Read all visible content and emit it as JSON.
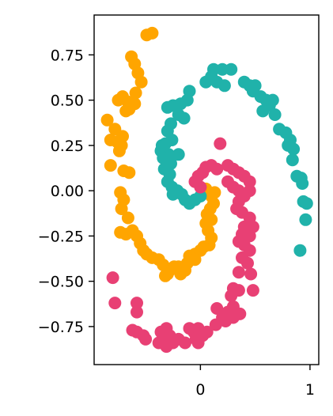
{
  "chart_data": {
    "type": "scatter",
    "title": "",
    "xlabel": "",
    "ylabel": "",
    "xlim": [
      -0.97,
      1.08
    ],
    "ylim": [
      -0.96,
      0.97
    ],
    "grid": false,
    "legend": "none",
    "xticks": [
      {
        "value": 0,
        "label": "0"
      },
      {
        "value": 1,
        "label": "1"
      }
    ],
    "yticks": [
      {
        "value": 0.75,
        "label": "0.75"
      },
      {
        "value": 0.5,
        "label": "0.50"
      },
      {
        "value": 0.25,
        "label": "0.25"
      },
      {
        "value": 0.0,
        "label": "0.00"
      },
      {
        "value": -0.25,
        "label": "−0.25"
      },
      {
        "value": -0.5,
        "label": "−0.50"
      },
      {
        "value": -0.75,
        "label": "−0.75"
      }
    ],
    "series": [
      {
        "color": "#FFA500",
        "points": [
          [
            -0.49,
            0.86
          ],
          [
            -0.44,
            0.87
          ],
          [
            -0.63,
            0.74
          ],
          [
            -0.6,
            0.7
          ],
          [
            -0.57,
            0.65
          ],
          [
            -0.54,
            0.6
          ],
          [
            -0.59,
            0.54
          ],
          [
            -0.71,
            0.52
          ],
          [
            -0.66,
            0.49
          ],
          [
            -0.6,
            0.48
          ],
          [
            -0.68,
            0.44
          ],
          [
            -0.75,
            0.5
          ],
          [
            -0.65,
            0.45
          ],
          [
            -0.85,
            0.39
          ],
          [
            -0.78,
            0.34
          ],
          [
            -0.71,
            0.3
          ],
          [
            -0.82,
            0.28
          ],
          [
            -0.76,
            0.27
          ],
          [
            -0.72,
            0.25
          ],
          [
            -0.74,
            0.22
          ],
          [
            -0.82,
            0.14
          ],
          [
            -0.7,
            0.11
          ],
          [
            -0.65,
            0.1
          ],
          [
            -0.73,
            -0.01
          ],
          [
            -0.7,
            -0.05
          ],
          [
            -0.72,
            -0.1
          ],
          [
            -0.66,
            -0.15
          ],
          [
            -0.73,
            -0.23
          ],
          [
            -0.68,
            -0.24
          ],
          [
            -0.62,
            -0.22
          ],
          [
            -0.58,
            -0.25
          ],
          [
            -0.55,
            -0.29
          ],
          [
            -0.52,
            -0.33
          ],
          [
            -0.49,
            -0.35
          ],
          [
            -0.44,
            -0.37
          ],
          [
            -0.38,
            -0.38
          ],
          [
            -0.34,
            -0.41
          ],
          [
            -0.32,
            -0.47
          ],
          [
            -0.28,
            -0.44
          ],
          [
            -0.24,
            -0.42
          ],
          [
            -0.2,
            -0.42
          ],
          [
            -0.14,
            -0.44
          ],
          [
            -0.12,
            -0.4
          ],
          [
            -0.1,
            -0.36
          ],
          [
            -0.05,
            -0.35
          ],
          [
            0.0,
            -0.33
          ],
          [
            0.03,
            -0.31
          ],
          [
            0.08,
            -0.3
          ],
          [
            0.1,
            -0.26
          ],
          [
            0.07,
            -0.22
          ],
          [
            0.05,
            -0.18
          ],
          [
            0.1,
            -0.16
          ],
          [
            0.06,
            -0.13
          ],
          [
            0.09,
            -0.1
          ],
          [
            0.12,
            -0.07
          ],
          [
            0.1,
            -0.03
          ],
          [
            0.13,
            -0.01
          ],
          [
            0.05,
            0.01
          ],
          [
            -0.05,
            -0.38
          ],
          [
            -0.3,
            -0.46
          ],
          [
            -0.18,
            -0.46
          ]
        ]
      },
      {
        "color": "#20B2AA",
        "points": [
          [
            0.12,
            0.67
          ],
          [
            0.2,
            0.67
          ],
          [
            0.28,
            0.67
          ],
          [
            0.1,
            0.63
          ],
          [
            0.05,
            0.6
          ],
          [
            0.15,
            0.6
          ],
          [
            0.22,
            0.58
          ],
          [
            -0.1,
            0.55
          ],
          [
            -0.12,
            0.5
          ],
          [
            -0.18,
            0.48
          ],
          [
            -0.25,
            0.47
          ],
          [
            -0.3,
            0.46
          ],
          [
            -0.2,
            0.42
          ],
          [
            -0.15,
            0.4
          ],
          [
            -0.27,
            0.37
          ],
          [
            -0.3,
            0.33
          ],
          [
            -0.26,
            0.28
          ],
          [
            -0.32,
            0.26
          ],
          [
            -0.36,
            0.22
          ],
          [
            -0.29,
            0.2
          ],
          [
            -0.34,
            0.18
          ],
          [
            -0.27,
            0.15
          ],
          [
            -0.33,
            0.12
          ],
          [
            -0.28,
            0.09
          ],
          [
            -0.3,
            0.05
          ],
          [
            -0.26,
            0.02
          ],
          [
            -0.21,
            0.0
          ],
          [
            -0.25,
            -0.02
          ],
          [
            -0.17,
            -0.02
          ],
          [
            -0.14,
            -0.05
          ],
          [
            -0.1,
            -0.07
          ],
          [
            -0.05,
            -0.05
          ],
          [
            0.0,
            -0.03
          ],
          [
            0.4,
            0.6
          ],
          [
            0.45,
            0.58
          ],
          [
            0.5,
            0.58
          ],
          [
            0.48,
            0.55
          ],
          [
            0.55,
            0.52
          ],
          [
            0.6,
            0.5
          ],
          [
            0.66,
            0.5
          ],
          [
            0.63,
            0.47
          ],
          [
            0.57,
            0.44
          ],
          [
            0.68,
            0.42
          ],
          [
            0.72,
            0.34
          ],
          [
            0.78,
            0.32
          ],
          [
            0.82,
            0.28
          ],
          [
            0.8,
            0.25
          ],
          [
            0.85,
            0.23
          ],
          [
            0.84,
            0.17
          ],
          [
            0.88,
            0.08
          ],
          [
            0.92,
            0.07
          ],
          [
            0.93,
            0.04
          ],
          [
            0.94,
            -0.06
          ],
          [
            0.97,
            -0.07
          ],
          [
            0.96,
            -0.16
          ],
          [
            0.91,
            -0.33
          ],
          [
            -0.2,
            0.2
          ],
          [
            -0.35,
            0.25
          ]
        ]
      },
      {
        "color": "#E84074",
        "points": [
          [
            0.18,
            0.26
          ],
          [
            0.1,
            0.14
          ],
          [
            0.05,
            0.13
          ],
          [
            0.02,
            0.1
          ],
          [
            0.15,
            0.12
          ],
          [
            0.25,
            0.14
          ],
          [
            0.3,
            0.12
          ],
          [
            0.35,
            0.1
          ],
          [
            0.4,
            0.08
          ],
          [
            0.45,
            0.05
          ],
          [
            -0.02,
            0.08
          ],
          [
            -0.05,
            0.05
          ],
          [
            0.0,
            0.02
          ],
          [
            0.25,
            0.05
          ],
          [
            0.3,
            0.02
          ],
          [
            0.35,
            0.0
          ],
          [
            0.45,
            0.0
          ],
          [
            0.4,
            -0.03
          ],
          [
            0.35,
            -0.06
          ],
          [
            0.33,
            -0.1
          ],
          [
            0.38,
            -0.12
          ],
          [
            0.45,
            -0.15
          ],
          [
            0.4,
            -0.2
          ],
          [
            0.48,
            -0.2
          ],
          [
            0.45,
            -0.25
          ],
          [
            0.38,
            -0.24
          ],
          [
            0.35,
            -0.28
          ],
          [
            0.4,
            -0.3
          ],
          [
            0.45,
            -0.33
          ],
          [
            0.38,
            -0.37
          ],
          [
            0.43,
            -0.4
          ],
          [
            0.35,
            -0.45
          ],
          [
            0.46,
            -0.46
          ],
          [
            0.3,
            -0.54
          ],
          [
            0.35,
            -0.55
          ],
          [
            0.28,
            -0.58
          ],
          [
            0.48,
            -0.55
          ],
          [
            0.3,
            -0.64
          ],
          [
            0.25,
            -0.67
          ],
          [
            0.2,
            -0.7
          ],
          [
            0.15,
            -0.65
          ],
          [
            0.23,
            -0.72
          ],
          [
            0.3,
            -0.7
          ],
          [
            0.36,
            -0.68
          ],
          [
            0.14,
            -0.74
          ],
          [
            -0.8,
            -0.48
          ],
          [
            -0.78,
            -0.62
          ],
          [
            -0.58,
            -0.62
          ],
          [
            -0.58,
            -0.67
          ],
          [
            -0.62,
            -0.77
          ],
          [
            -0.58,
            -0.78
          ],
          [
            -0.52,
            -0.8
          ],
          [
            -0.5,
            -0.82
          ],
          [
            -0.36,
            -0.78
          ],
          [
            -0.31,
            -0.76
          ],
          [
            -0.33,
            -0.82
          ],
          [
            -0.38,
            -0.84
          ],
          [
            -0.31,
            -0.86
          ],
          [
            -0.25,
            -0.84
          ],
          [
            -0.2,
            -0.82
          ],
          [
            -0.1,
            -0.76
          ],
          [
            -0.06,
            -0.78
          ],
          [
            -0.02,
            -0.76
          ],
          [
            -0.04,
            -0.82
          ],
          [
            0.02,
            -0.8
          ],
          [
            0.06,
            -0.78
          ],
          [
            -0.14,
            -0.84
          ],
          [
            -0.28,
            -0.8
          ],
          [
            -0.02,
            -0.84
          ]
        ]
      }
    ]
  }
}
